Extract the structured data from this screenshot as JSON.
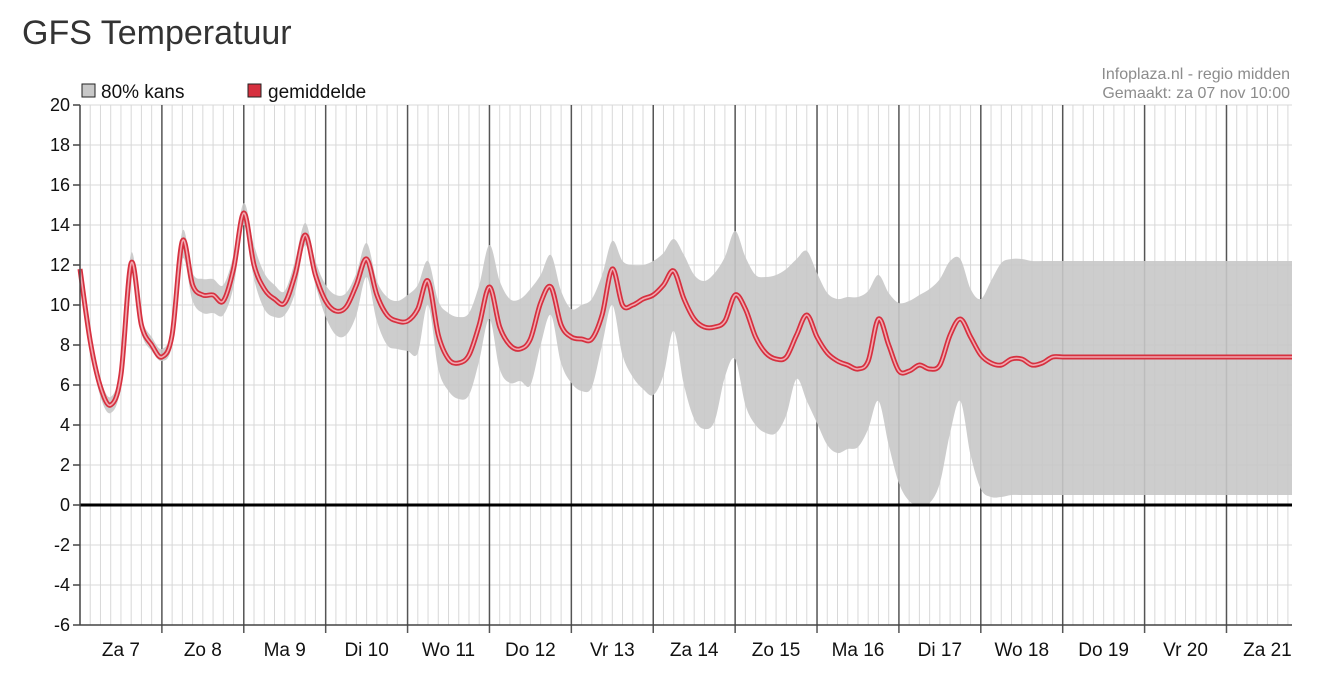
{
  "title": "GFS Temperatuur",
  "source": {
    "line1": "Infoplaza.nl - regio midden",
    "line2": "Gemaakt: za 07 nov 10:00"
  },
  "colors": {
    "band": "#c8c8c8",
    "mean": "#d6303f",
    "mean_core": "#f1a9b1",
    "zero_line": "#000000",
    "day_grid": "#555555",
    "sub_grid": "#d8d8d8"
  },
  "chart_data": {
    "type": "area",
    "legend": [
      {
        "key": "band",
        "label": "80% kans"
      },
      {
        "key": "mean",
        "label": "gemiddelde"
      }
    ],
    "legend_position": "top-left",
    "grid": true,
    "ylim": [
      -6,
      20
    ],
    "yticks": [
      "20",
      "18",
      "16",
      "14",
      "12",
      "10",
      "8",
      "6",
      "4",
      "2",
      "0",
      "-2",
      "-4",
      "-6"
    ],
    "xlim": [
      0,
      14.8
    ],
    "days": [
      "Za 7",
      "Zo 8",
      "Ma 9",
      "Di 10",
      "Wo 11",
      "Do 12",
      "Vr 13",
      "Za 14",
      "Zo 15",
      "Ma 16",
      "Di 17",
      "Wo 18",
      "Do 19",
      "Vr 20",
      "Za 21"
    ],
    "x": [
      0,
      0.125,
      0.25,
      0.375,
      0.5,
      0.625,
      0.75,
      0.875,
      1.0,
      1.125,
      1.25,
      1.375,
      1.5,
      1.625,
      1.75,
      1.875,
      2.0,
      2.125,
      2.25,
      2.375,
      2.5,
      2.625,
      2.75,
      2.875,
      3.0,
      3.125,
      3.25,
      3.375,
      3.5,
      3.625,
      3.75,
      3.875,
      4.0,
      4.125,
      4.25,
      4.375,
      4.5,
      4.625,
      4.75,
      4.875,
      5.0,
      5.125,
      5.25,
      5.375,
      5.5,
      5.625,
      5.75,
      5.875,
      6.0,
      6.125,
      6.25,
      6.375,
      6.5,
      6.625,
      6.75,
      6.875,
      7.0,
      7.125,
      7.25,
      7.375,
      7.5,
      7.625,
      7.75,
      7.875,
      8.0,
      8.125,
      8.25,
      8.375,
      8.5,
      8.625,
      8.75,
      8.875,
      9.0,
      9.125,
      9.25,
      9.375,
      9.5,
      9.625,
      9.75,
      9.875,
      10.0,
      10.125,
      10.25,
      10.375,
      10.5,
      10.625,
      10.75,
      10.875,
      11.0,
      11.125,
      11.25,
      11.375,
      11.5,
      11.625,
      11.75,
      11.875,
      12.0,
      12.125,
      12.25,
      12.375,
      12.5,
      12.625,
      12.75,
      12.875,
      13.0,
      13.125,
      13.25,
      13.375,
      13.5,
      13.625,
      13.75,
      13.875,
      14.0,
      14.125,
      14.25,
      14.375,
      14.5,
      14.625,
      14.75,
      14.8
    ],
    "series": [
      {
        "key": "mean",
        "name": "gemiddelde",
        "values": [
          11.8,
          8.2,
          5.9,
          5.0,
          6.5,
          12.1,
          9.0,
          8.0,
          7.4,
          8.5,
          13.2,
          11.0,
          10.5,
          10.5,
          10.2,
          11.8,
          14.6,
          12.0,
          10.8,
          10.3,
          10.1,
          11.5,
          13.5,
          11.5,
          10.2,
          9.7,
          9.9,
          11.0,
          12.3,
          10.5,
          9.5,
          9.2,
          9.2,
          9.8,
          11.2,
          8.5,
          7.3,
          7.1,
          7.5,
          9.0,
          10.9,
          8.9,
          8.0,
          7.8,
          8.3,
          10.1,
          10.9,
          9.0,
          8.4,
          8.3,
          8.3,
          9.5,
          11.8,
          10.0,
          10.0,
          10.3,
          10.5,
          11.0,
          11.7,
          10.3,
          9.3,
          8.9,
          8.9,
          9.2,
          10.5,
          9.8,
          8.4,
          7.6,
          7.3,
          7.4,
          8.5,
          9.5,
          8.4,
          7.6,
          7.2,
          7.0,
          6.8,
          7.2,
          9.3,
          8.0,
          6.7,
          6.7,
          7.0,
          6.8,
          7.0,
          8.5,
          9.3,
          8.4,
          7.5,
          7.1,
          7.0,
          7.3,
          7.3,
          7.0,
          7.1,
          7.4,
          7.4,
          7.4,
          7.4,
          7.4,
          7.4,
          7.4,
          7.4,
          7.4,
          7.4,
          7.4,
          7.4,
          7.4,
          7.4,
          7.4,
          7.4,
          7.4,
          7.4,
          7.4,
          7.4,
          7.4,
          7.4,
          7.4,
          7.4,
          7.4
        ]
      },
      {
        "key": "band_upper",
        "name": "80% kans",
        "values": [
          12.0,
          8.6,
          6.3,
          5.4,
          7.0,
          12.6,
          9.4,
          8.4,
          7.8,
          8.9,
          13.7,
          11.6,
          11.3,
          11.3,
          11.0,
          12.5,
          15.1,
          13.0,
          11.6,
          11.0,
          10.7,
          12.2,
          14.1,
          12.2,
          11.0,
          10.5,
          10.6,
          11.6,
          13.1,
          11.2,
          10.4,
          10.2,
          10.5,
          11.0,
          12.2,
          10.2,
          9.6,
          9.4,
          9.6,
          11.0,
          13.0,
          11.2,
          10.3,
          10.3,
          10.8,
          11.5,
          12.5,
          10.7,
          9.8,
          10.0,
          10.3,
          11.5,
          13.2,
          12.2,
          12.0,
          12.0,
          12.2,
          12.6,
          13.3,
          12.5,
          11.5,
          11.2,
          11.6,
          12.4,
          13.7,
          12.4,
          11.5,
          11.4,
          11.5,
          11.8,
          12.3,
          12.7,
          11.6,
          10.6,
          10.3,
          10.4,
          10.4,
          10.7,
          11.5,
          10.6,
          10.1,
          10.2,
          10.5,
          10.8,
          11.3,
          12.2,
          12.3,
          10.8,
          10.3,
          11.2,
          12.1,
          12.3,
          12.3,
          12.2,
          12.2,
          12.2,
          12.2,
          12.2,
          12.2,
          12.2,
          12.2,
          12.2,
          12.2,
          12.2,
          12.2,
          12.2,
          12.2,
          12.2,
          12.2,
          12.2,
          12.2,
          12.2,
          12.2,
          12.2,
          12.2,
          12.2,
          12.2,
          12.2,
          12.2,
          12.2
        ]
      },
      {
        "key": "band_lower",
        "name": "80% kans",
        "values": [
          11.6,
          7.8,
          5.4,
          4.6,
          6.0,
          11.6,
          8.6,
          7.7,
          7.2,
          8.0,
          12.3,
          10.2,
          9.6,
          9.6,
          9.5,
          10.9,
          14.0,
          11.3,
          9.8,
          9.4,
          9.5,
          10.6,
          13.0,
          11.0,
          9.4,
          8.5,
          8.5,
          9.5,
          11.4,
          9.2,
          8.0,
          7.8,
          7.7,
          7.6,
          10.0,
          6.8,
          5.7,
          5.3,
          5.5,
          7.2,
          9.3,
          6.8,
          6.1,
          6.2,
          6.0,
          8.0,
          9.5,
          7.1,
          6.1,
          5.7,
          5.9,
          8.0,
          10.0,
          7.5,
          6.4,
          5.8,
          5.5,
          6.5,
          8.7,
          6.0,
          4.3,
          3.8,
          4.2,
          6.4,
          7.3,
          5.0,
          4.0,
          3.6,
          3.6,
          4.5,
          6.3,
          5.2,
          4.1,
          3.0,
          2.6,
          2.8,
          2.9,
          3.8,
          5.2,
          3.0,
          1.1,
          0.2,
          0.0,
          0.1,
          1.1,
          3.6,
          5.2,
          2.5,
          0.8,
          0.4,
          0.4,
          0.5,
          0.5,
          0.5,
          0.5,
          0.5,
          0.5,
          0.5,
          0.5,
          0.5,
          0.5,
          0.5,
          0.5,
          0.5,
          0.5,
          0.5,
          0.5,
          0.5,
          0.5,
          0.5,
          0.5,
          0.5,
          0.5,
          0.5,
          0.5,
          0.5,
          0.5,
          0.5,
          0.5,
          0.5
        ]
      }
    ]
  }
}
